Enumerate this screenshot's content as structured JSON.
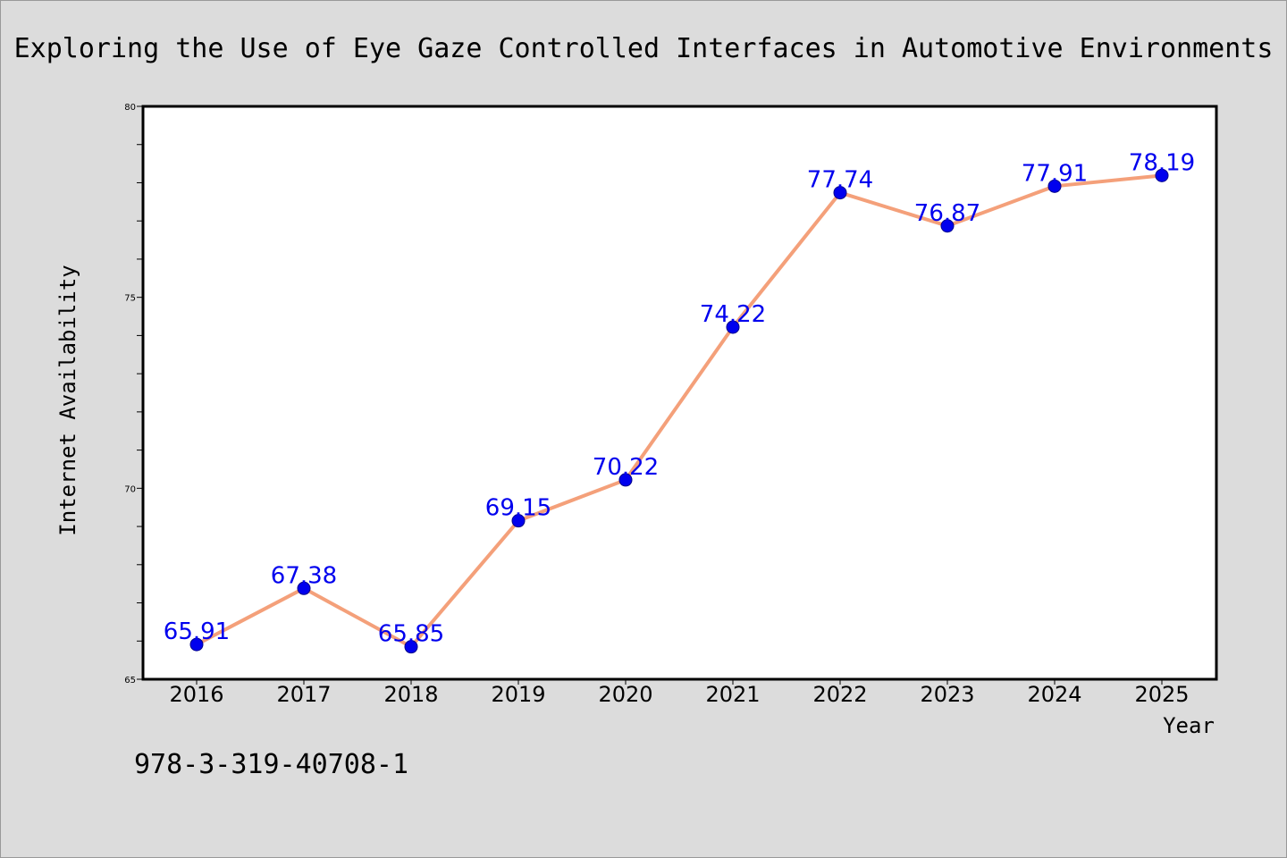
{
  "chart_data": {
    "type": "line",
    "title": "Exploring the Use of Eye Gaze Controlled Interfaces in Automotive Environments",
    "xlabel": "Year",
    "ylabel": "Internet Availability",
    "categories": [
      "2016",
      "2017",
      "2018",
      "2019",
      "2020",
      "2021",
      "2022",
      "2023",
      "2024",
      "2025"
    ],
    "series": [
      {
        "values": [
          65.91,
          67.38,
          65.85,
          69.15,
          70.22,
          74.22,
          77.74,
          76.87,
          77.91,
          78.19
        ],
        "labels": [
          "65.91",
          "67.38",
          "65.85",
          "69.15",
          "70.22",
          "74.22",
          "77.74",
          "76.87",
          "77.91",
          "78.19"
        ],
        "line_color": "#f4a07a",
        "marker_color": "#0000ee"
      }
    ],
    "ylim": [
      65,
      80
    ],
    "yticks": [
      "65",
      "70",
      "75",
      "80"
    ],
    "grid": false
  },
  "footer": {
    "isbn": "978-3-319-40708-1"
  }
}
